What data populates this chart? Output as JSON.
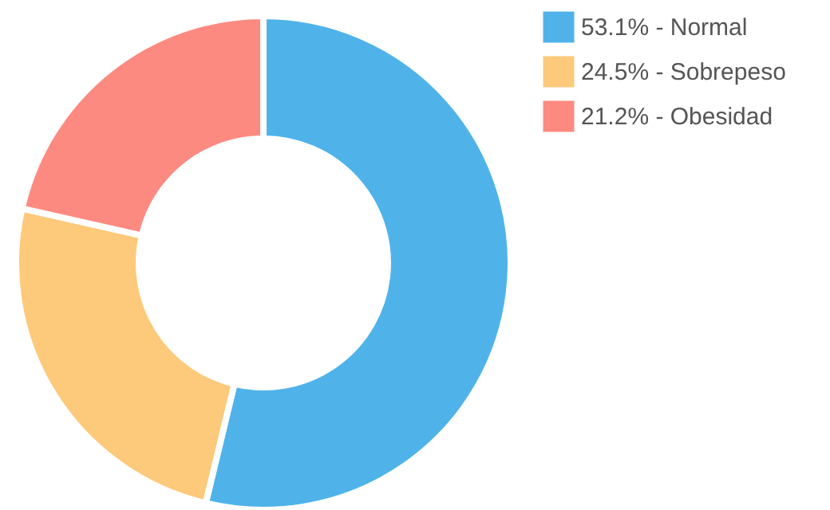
{
  "chart_data": {
    "type": "donut",
    "categories": [
      "53.1% - Normal",
      "24.5% - Sobrepeso",
      "21.2% - Obesidad"
    ],
    "values": [
      53.1,
      24.5,
      21.2
    ],
    "colors": [
      "#4fb3ea",
      "#fdc97a",
      "#fd8a80"
    ],
    "legend": "right"
  }
}
